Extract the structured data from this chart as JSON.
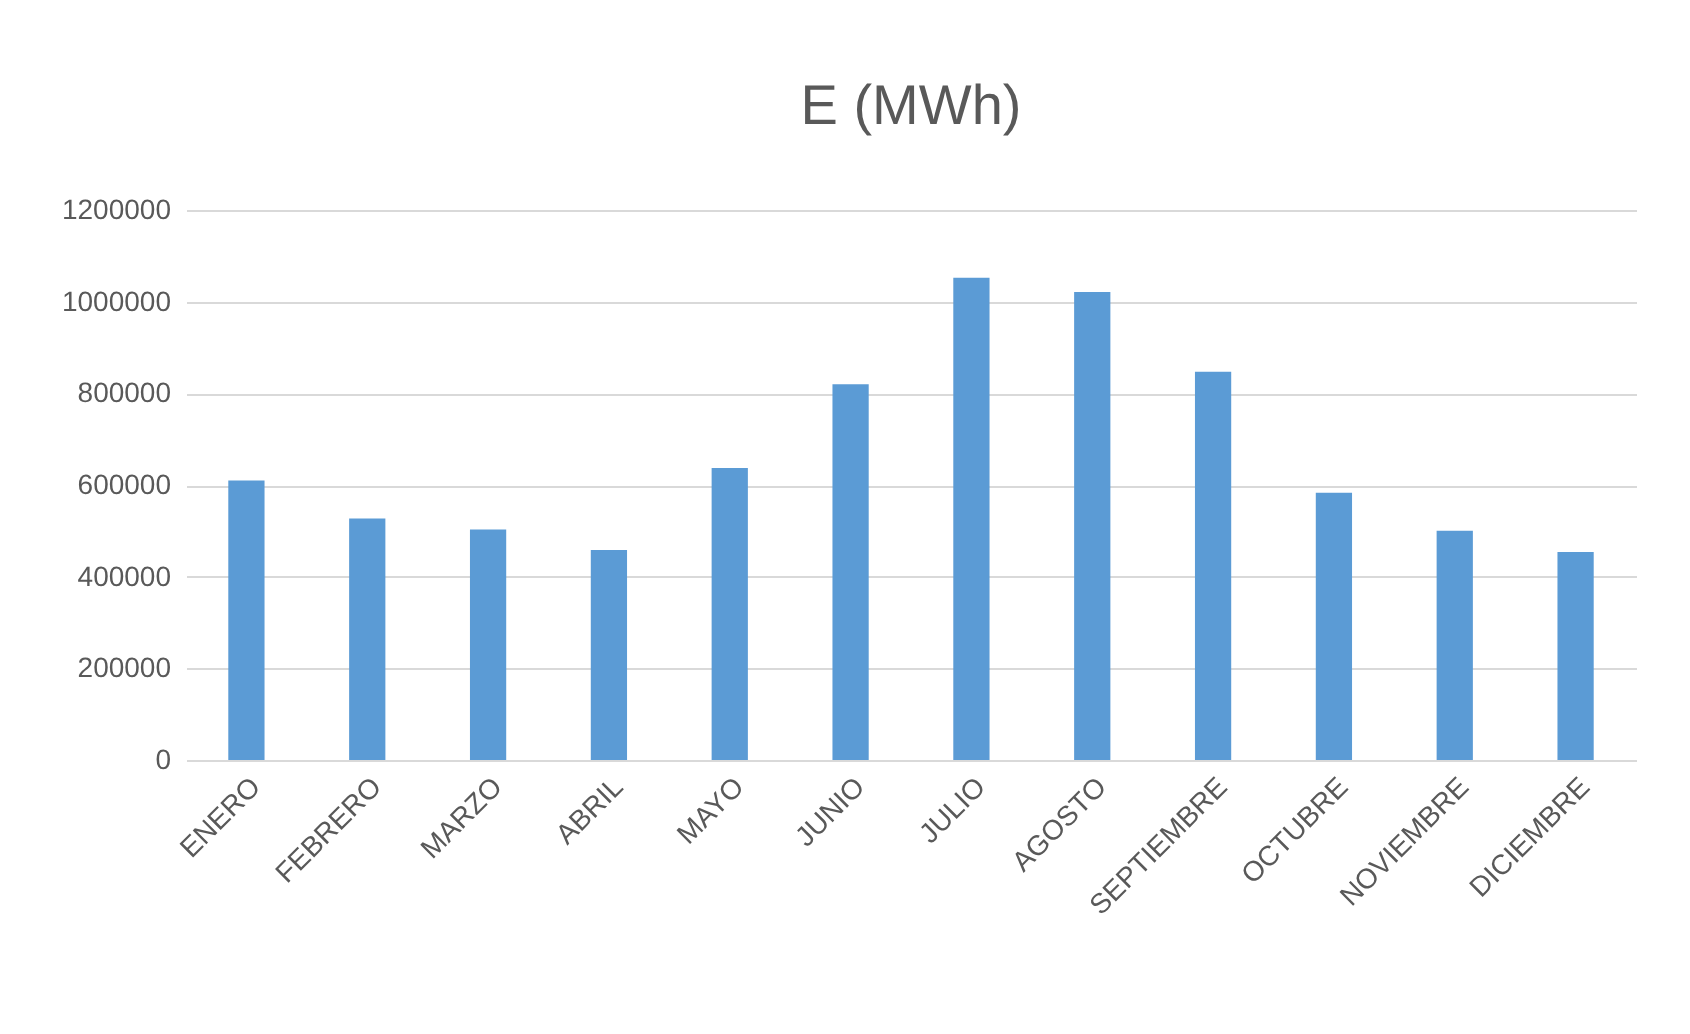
{
  "chart_data": {
    "type": "bar",
    "title": "E (MWh)",
    "categories": [
      "ENERO",
      "FEBRERO",
      "MARZO",
      "ABRIL",
      "MAYO",
      "JUNIO",
      "JULIO",
      "AGOSTO",
      "SEPTIEMBRE",
      "OCTUBRE",
      "NOVIEMBRE",
      "DICIEMBRE"
    ],
    "values": [
      610000,
      527000,
      503000,
      458000,
      637000,
      820000,
      1052000,
      1021000,
      847000,
      583000,
      500000,
      454000
    ],
    "color": "#5b9bd5",
    "ylim": [
      0,
      1200000
    ],
    "yticks": [
      0,
      200000,
      400000,
      600000,
      800000,
      1000000,
      1200000
    ],
    "grid": "y"
  }
}
